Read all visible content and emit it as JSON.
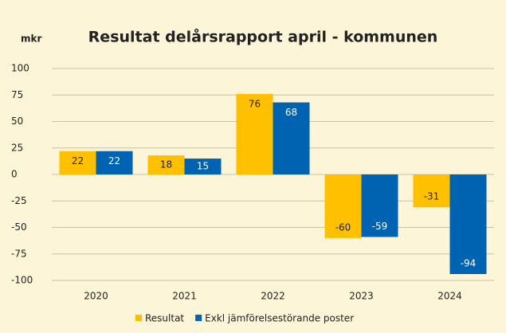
{
  "chart_data": {
    "type": "bar",
    "title": "Resultat delårsrapport april -  kommunen",
    "y_label": "mkr",
    "categories": [
      "2020",
      "2021",
      "2022",
      "2023",
      "2024"
    ],
    "series": [
      {
        "name": "Resultat",
        "color": "#ffc000",
        "values": [
          22,
          18,
          76,
          -60,
          -31
        ]
      },
      {
        "name": "Exkl jämförelsestörande poster",
        "color": "#0063b1",
        "values": [
          22,
          15,
          68,
          -59,
          -94
        ]
      }
    ],
    "ylim": [
      -100,
      100
    ],
    "yticks": [
      -100,
      -75,
      -50,
      -25,
      0,
      25,
      50,
      75,
      100
    ],
    "grid": true,
    "legend": "bottom"
  }
}
